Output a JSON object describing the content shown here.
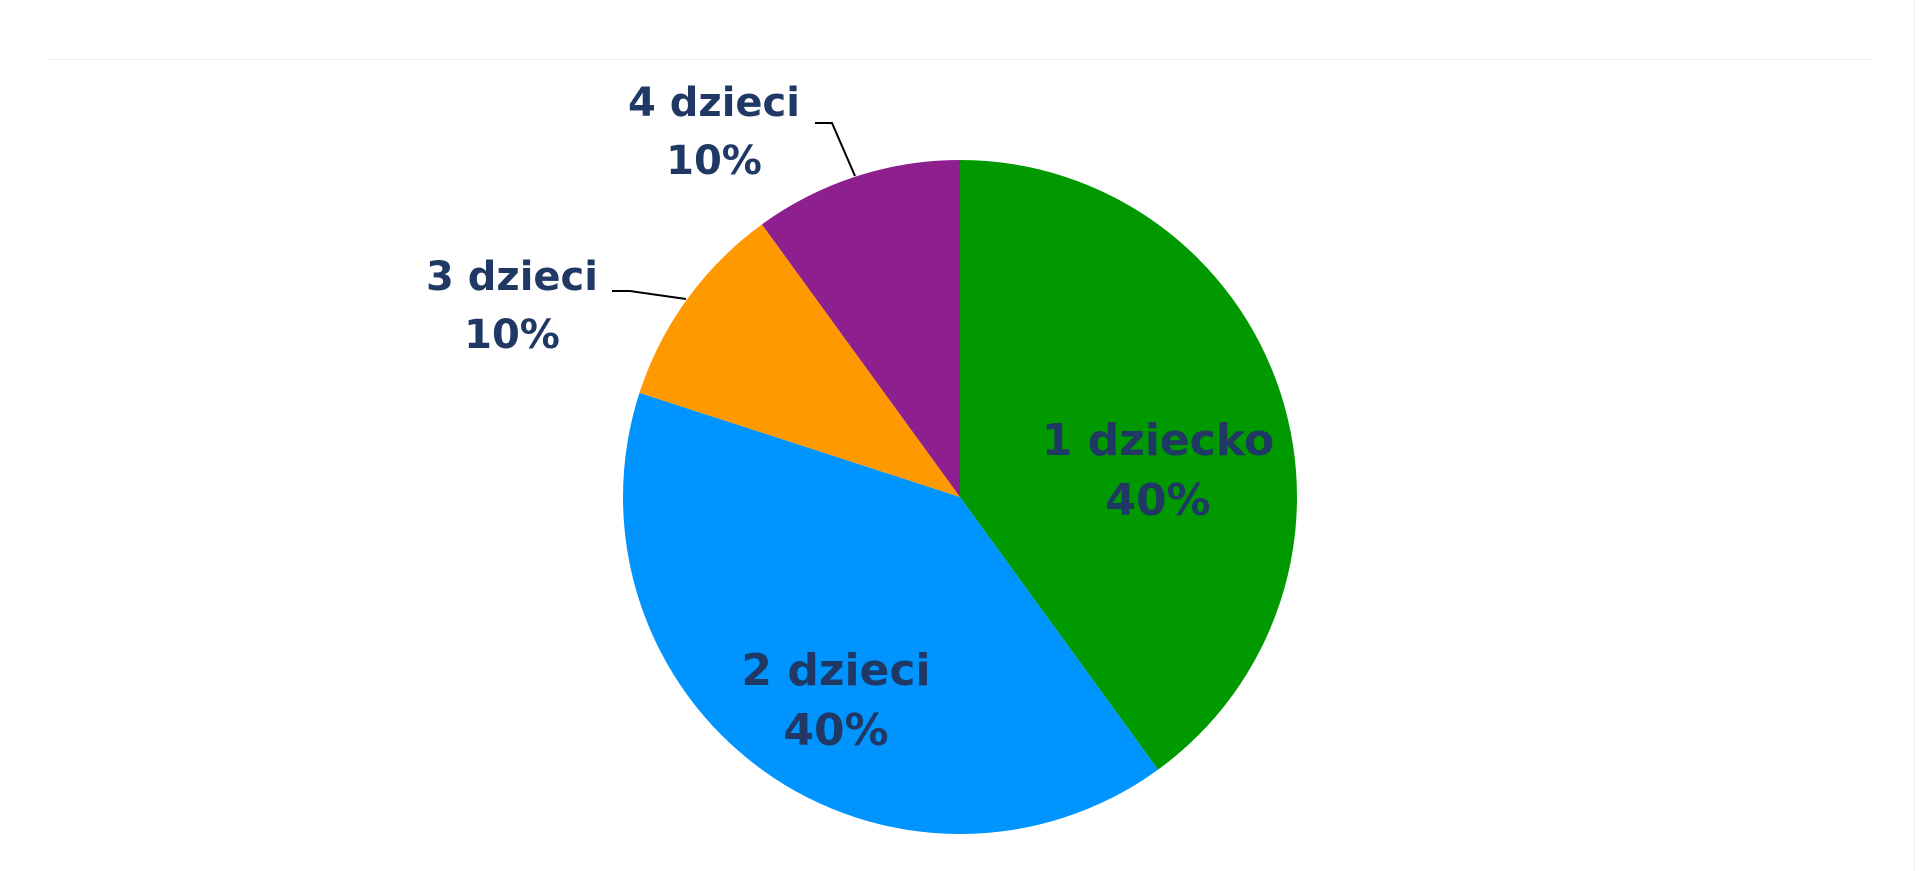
{
  "chart_data": {
    "type": "pie",
    "title": "",
    "slices": [
      {
        "label": "1 dziecko",
        "percent_label": "40%",
        "value": 40,
        "color": "#009900"
      },
      {
        "label": "2 dzieci",
        "percent_label": "40%",
        "value": 40,
        "color": "#0094ff"
      },
      {
        "label": "3 dzieci",
        "percent_label": "10%",
        "value": 10,
        "color": "#ff9900"
      },
      {
        "label": "4 dzieci",
        "percent_label": "10%",
        "value": 10,
        "color": "#8e1f8e"
      }
    ],
    "start_angle_deg": 0,
    "direction": "clockwise",
    "legend": "none"
  }
}
